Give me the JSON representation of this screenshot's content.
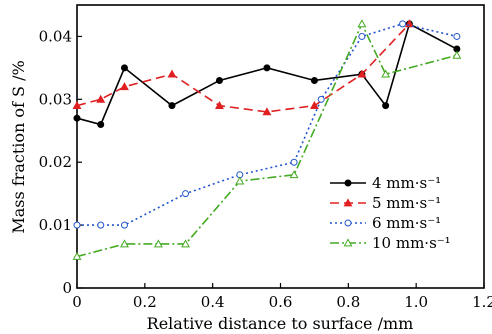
{
  "chart_data": {
    "type": "line",
    "title": "",
    "xlabel": "Relative distance to surface /mm",
    "ylabel": "Mass fraction of S /%",
    "xlim": [
      0,
      1.2
    ],
    "ylim": [
      0,
      0.045
    ],
    "x_ticks": [
      "0",
      "0.2",
      "0.4",
      "0.6",
      "0.8",
      "1.0",
      "1.2"
    ],
    "y_ticks": [
      "0",
      "0.01",
      "0.02",
      "0.03",
      "0.04"
    ],
    "grid": false,
    "legend_position": "right",
    "series": [
      {
        "name": "4 mm·s⁻¹",
        "color": "#000000",
        "dash": "solid",
        "marker": "filled-circle",
        "x": [
          0,
          0.07,
          0.14,
          0.28,
          0.42,
          0.56,
          0.7,
          0.84,
          0.91,
          0.98,
          1.12
        ],
        "y": [
          0.027,
          0.026,
          0.035,
          0.029,
          0.033,
          0.035,
          0.033,
          0.034,
          0.029,
          0.042,
          0.038
        ]
      },
      {
        "name": "5 mm·s⁻¹",
        "color": "#e02020",
        "dash": "dashed",
        "marker": "filled-triangle",
        "x": [
          0,
          0.07,
          0.14,
          0.28,
          0.42,
          0.56,
          0.7,
          0.84,
          0.98
        ],
        "y": [
          0.029,
          0.03,
          0.032,
          0.034,
          0.029,
          0.028,
          0.029,
          0.034,
          0.042
        ]
      },
      {
        "name": "6 mm·s⁻¹",
        "color": "#2255cc",
        "dash": "dotted",
        "marker": "open-circle",
        "x": [
          0,
          0.07,
          0.14,
          0.32,
          0.48,
          0.64,
          0.72,
          0.84,
          0.96,
          1.12
        ],
        "y": [
          0.01,
          0.01,
          0.01,
          0.015,
          0.018,
          0.02,
          0.03,
          0.04,
          0.042,
          0.04
        ]
      },
      {
        "name": "10 mm·s⁻¹",
        "color": "#44aa22",
        "dash": "dashdot",
        "marker": "open-triangle",
        "x": [
          0,
          0.14,
          0.24,
          0.32,
          0.48,
          0.64,
          0.84,
          0.91,
          1.12
        ],
        "y": [
          0.005,
          0.007,
          0.007,
          0.007,
          0.017,
          0.018,
          0.042,
          0.034,
          0.037
        ]
      }
    ]
  }
}
